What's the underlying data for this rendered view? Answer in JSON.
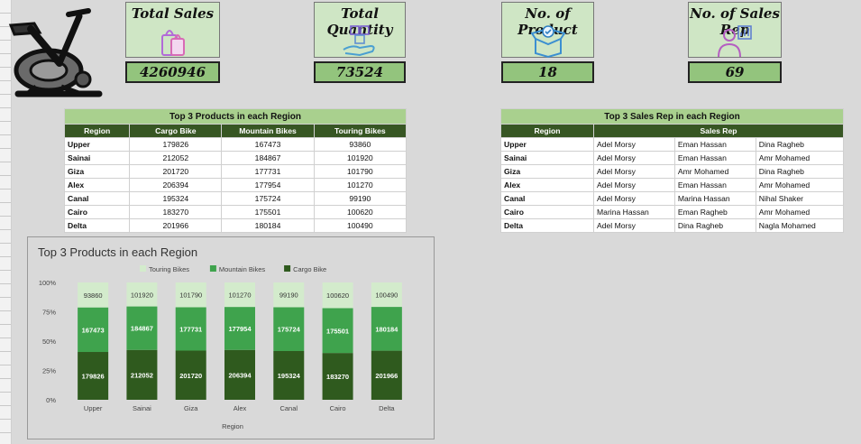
{
  "kpis": [
    {
      "title": "Total Sales",
      "value": "4260946",
      "icon": "shopping-bags-icon"
    },
    {
      "title": "Total Quantity",
      "value": "73524",
      "icon": "boxes-hand-icon"
    },
    {
      "title": "No. of Product",
      "value": "18",
      "icon": "product-box-icon"
    },
    {
      "title": "No. of Sales Rep",
      "value": "69",
      "icon": "sales-rep-icon"
    }
  ],
  "products_table": {
    "caption": "Top 3 Products in each Region",
    "headers": [
      "Region",
      "Cargo Bike",
      "Mountain Bikes",
      "Touring Bikes"
    ],
    "rows": [
      [
        "Upper",
        "179826",
        "167473",
        "93860"
      ],
      [
        "Sainai",
        "212052",
        "184867",
        "101920"
      ],
      [
        "Giza",
        "201720",
        "177731",
        "101790"
      ],
      [
        "Alex",
        "206394",
        "177954",
        "101270"
      ],
      [
        "Canal",
        "195324",
        "175724",
        "99190"
      ],
      [
        "Cairo",
        "183270",
        "175501",
        "100620"
      ],
      [
        "Delta",
        "201966",
        "180184",
        "100490"
      ]
    ]
  },
  "sales_rep_table": {
    "caption": "Top 3 Sales Rep in each Region",
    "headers": [
      "Region",
      "Sales Rep"
    ],
    "rows": [
      [
        "Upper",
        "Adel Morsy",
        "Eman Hassan",
        "Dina Ragheb"
      ],
      [
        "Sainai",
        "Adel Morsy",
        "Eman Hassan",
        "Amr Mohamed"
      ],
      [
        "Giza",
        "Adel Morsy",
        "Amr Mohamed",
        "Dina Ragheb"
      ],
      [
        "Alex",
        "Adel Morsy",
        "Eman Hassan",
        "Amr Mohamed"
      ],
      [
        "Canal",
        "Adel Morsy",
        "Marina Hassan",
        "Nihal Shaker"
      ],
      [
        "Cairo",
        "Marina Hassan",
        "Eman Ragheb",
        "Amr Mohamed"
      ],
      [
        "Delta",
        "Adel Morsy",
        "Dina Ragheb",
        "Nagla Mohamed"
      ]
    ]
  },
  "chart_data": {
    "type": "bar",
    "stacked": "percent",
    "title": "Top 3 Products in each Region",
    "xlabel": "Region",
    "ylabel": "",
    "ylim": [
      0,
      100
    ],
    "yticks": [
      "0%",
      "25%",
      "50%",
      "75%",
      "100%"
    ],
    "categories": [
      "Upper",
      "Sainai",
      "Giza",
      "Alex",
      "Canal",
      "Cairo",
      "Delta"
    ],
    "legend_position": "top",
    "series": [
      {
        "name": "Cargo Bike",
        "color": "#2f5a1e",
        "values": [
          179826,
          212052,
          201720,
          206394,
          195324,
          183270,
          201966
        ]
      },
      {
        "name": "Mountain Bikes",
        "color": "#3fa34d",
        "values": [
          167473,
          184867,
          177731,
          177954,
          175724,
          175501,
          180184
        ]
      },
      {
        "name": "Touring Bikes",
        "color": "#d3ebcc",
        "values": [
          93860,
          101920,
          101790,
          101270,
          99190,
          100620,
          100490
        ]
      }
    ],
    "legend_order": [
      "Touring Bikes",
      "Mountain Bikes",
      "Cargo Bike"
    ]
  }
}
